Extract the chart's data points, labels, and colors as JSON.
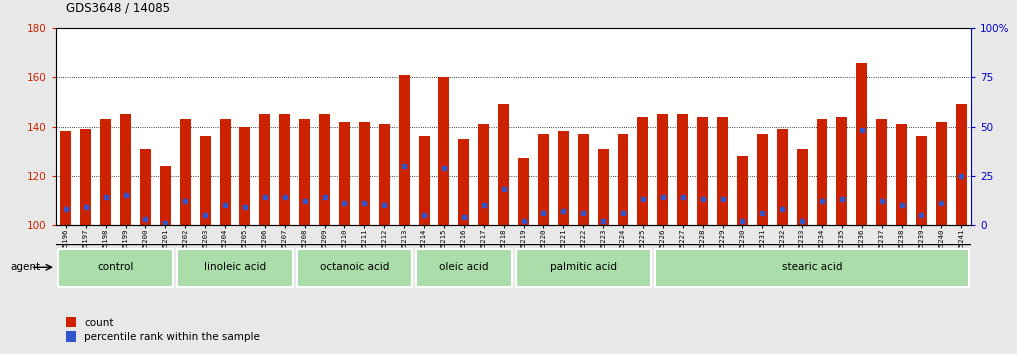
{
  "title": "GDS3648 / 14085",
  "samples": [
    "GSM525196",
    "GSM525197",
    "GSM525198",
    "GSM525199",
    "GSM525200",
    "GSM525201",
    "GSM525202",
    "GSM525203",
    "GSM525204",
    "GSM525205",
    "GSM525206",
    "GSM525207",
    "GSM525208",
    "GSM525209",
    "GSM525210",
    "GSM525211",
    "GSM525212",
    "GSM525213",
    "GSM525214",
    "GSM525215",
    "GSM525216",
    "GSM525217",
    "GSM525218",
    "GSM525219",
    "GSM525220",
    "GSM525221",
    "GSM525222",
    "GSM525223",
    "GSM525224",
    "GSM525225",
    "GSM525226",
    "GSM525227",
    "GSM525228",
    "GSM525229",
    "GSM525230",
    "GSM525231",
    "GSM525232",
    "GSM525233",
    "GSM525234",
    "GSM525235",
    "GSM525236",
    "GSM525237",
    "GSM525238",
    "GSM525239",
    "GSM525240",
    "GSM525241"
  ],
  "counts": [
    138,
    139,
    143,
    145,
    131,
    124,
    143,
    136,
    143,
    140,
    145,
    145,
    143,
    145,
    142,
    142,
    141,
    161,
    136,
    160,
    135,
    141,
    149,
    127,
    137,
    138,
    137,
    131,
    137,
    144,
    145,
    145,
    144,
    144,
    128,
    137,
    139,
    131,
    143,
    144,
    166,
    143,
    141,
    136,
    142,
    149
  ],
  "percentile_ranks": [
    8,
    9,
    14,
    15,
    3,
    1,
    12,
    5,
    10,
    9,
    14,
    14,
    12,
    14,
    11,
    11,
    10,
    30,
    5,
    29,
    4,
    10,
    18,
    2,
    6,
    7,
    6,
    2,
    6,
    13,
    14,
    14,
    13,
    13,
    2,
    6,
    8,
    2,
    12,
    13,
    48,
    12,
    10,
    5,
    11,
    25
  ],
  "groups": [
    {
      "name": "control",
      "start": 0,
      "end": 5
    },
    {
      "name": "linoleic acid",
      "start": 6,
      "end": 11
    },
    {
      "name": "octanoic acid",
      "start": 12,
      "end": 17
    },
    {
      "name": "oleic acid",
      "start": 18,
      "end": 22
    },
    {
      "name": "palmitic acid",
      "start": 23,
      "end": 29
    },
    {
      "name": "stearic acid",
      "start": 30,
      "end": 45
    }
  ],
  "bar_color": "#cc2200",
  "dot_color": "#3355cc",
  "ylim_left": [
    100,
    180
  ],
  "ylim_right": [
    0,
    100
  ],
  "yticks_left": [
    100,
    120,
    140,
    160,
    180
  ],
  "yticks_right": [
    0,
    25,
    50,
    75,
    100
  ],
  "bg_color": "#e8e8e8",
  "plot_bg": "#ffffff",
  "group_bg": "#aaddaa",
  "agent_label": "agent",
  "legend_count": "count",
  "legend_pct": "percentile rank within the sample"
}
